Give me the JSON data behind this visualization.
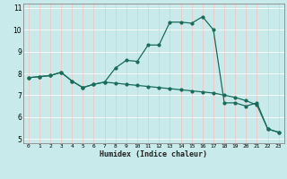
{
  "title": "",
  "xlabel": "Humidex (Indice chaleur)",
  "bg_color": "#c8eaea",
  "line_color": "#1a6b5a",
  "grid_color": "#ffffff",
  "pink_grid_color": "#f0c8c8",
  "xlim": [
    -0.5,
    23.5
  ],
  "ylim": [
    4.8,
    11.2
  ],
  "yticks": [
    5,
    6,
    7,
    8,
    9,
    10,
    11
  ],
  "xtick_labels": [
    "0",
    "1",
    "2",
    "3",
    "4",
    "5",
    "6",
    "7",
    "8",
    "9",
    "10",
    "11",
    "12",
    "13",
    "14",
    "15",
    "16",
    "17",
    "18",
    "19",
    "20",
    "21",
    "22",
    "23"
  ],
  "xtick_pos": [
    0,
    1,
    2,
    3,
    4,
    5,
    6,
    7,
    8,
    9,
    10,
    11,
    12,
    13,
    14,
    15,
    16,
    17,
    18,
    19,
    20,
    21,
    22,
    23
  ],
  "series1_x": [
    0,
    1,
    2,
    3,
    4,
    5,
    6,
    7,
    8,
    9,
    10,
    11,
    12,
    13,
    14,
    15,
    16,
    17,
    18,
    19,
    20,
    21,
    22,
    23
  ],
  "series1_y": [
    7.8,
    7.85,
    7.9,
    8.05,
    7.65,
    7.35,
    7.5,
    7.6,
    8.25,
    8.6,
    8.55,
    9.3,
    9.3,
    10.35,
    10.35,
    10.3,
    10.6,
    10.0,
    6.65,
    6.65,
    6.5,
    6.65,
    5.45,
    5.3
  ],
  "series2_x": [
    0,
    1,
    2,
    3,
    4,
    5,
    6,
    7,
    8,
    9,
    10,
    11,
    12,
    13,
    14,
    15,
    16,
    17,
    18,
    19,
    20,
    21,
    22,
    23
  ],
  "series2_y": [
    7.8,
    7.85,
    7.9,
    8.05,
    7.65,
    7.35,
    7.5,
    7.6,
    7.55,
    7.5,
    7.45,
    7.4,
    7.35,
    7.3,
    7.25,
    7.2,
    7.15,
    7.1,
    7.0,
    6.9,
    6.75,
    6.55,
    5.45,
    5.3
  ],
  "marker_size": 2.0,
  "line_width": 0.9
}
